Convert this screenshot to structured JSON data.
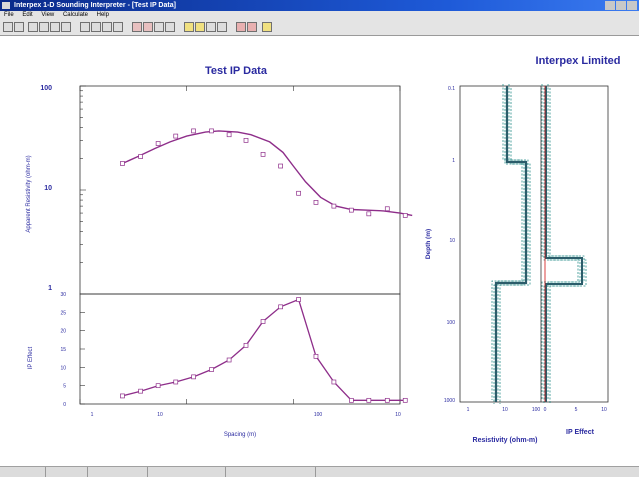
{
  "window": {
    "title": "Interpex 1-D Sounding Interpreter - [Test IP Data]"
  },
  "menu": [
    "File",
    "Edit",
    "View",
    "Calculate",
    "Help"
  ],
  "plot": {
    "title": "Test IP Data",
    "company": "Interpex Limited",
    "res_axis_label": "Apparent Resistivity (ohm-m)",
    "ip_axis_label": "IP Effect",
    "spacing_label": "Spacing (m)",
    "res_ticks": [
      "100",
      "10",
      "1"
    ],
    "ip_ticks": [
      "30",
      "25",
      "20",
      "15",
      "10",
      "5",
      "0"
    ],
    "spacing_ticks": [
      "1",
      "10",
      "100",
      "10"
    ],
    "depth_label": "Depth (m)",
    "depth_ticks": [
      "0.1",
      "1",
      "10",
      "100",
      "1000"
    ],
    "model_res_label": "Resistivity (ohm-m)",
    "model_res_ticks": [
      "1",
      "10",
      "100"
    ],
    "model_ip_label": "IP Effect",
    "model_ip_ticks": [
      "0",
      "5",
      "10"
    ]
  },
  "colors": {
    "title": "#2a2aa0",
    "curve": "#8e2e8a",
    "model": "#2a8f8a",
    "red": "#d01010"
  },
  "chart_data": [
    {
      "type": "scatter",
      "name": "apparent-resistivity",
      "x_scale": "log",
      "y_scale": "log",
      "xlim": [
        1,
        1000
      ],
      "ylim": [
        1,
        100
      ],
      "observed": {
        "x": [
          2.5,
          3.7,
          5.4,
          7.9,
          11.6,
          17.1,
          25,
          36,
          52,
          76,
          112,
          163
        ],
        "y": [
          18,
          21,
          28,
          33,
          37,
          37,
          34,
          30,
          22,
          17,
          9.3,
          7.6
        ]
      },
      "fit": {
        "x": [
          2.5,
          3.5,
          5,
          7,
          10,
          15,
          20,
          30,
          40,
          60,
          80,
          100,
          130,
          180,
          250,
          350,
          500,
          700,
          1000,
          1300
        ],
        "y": [
          18,
          21,
          25,
          29,
          33,
          36,
          37,
          36,
          34,
          29,
          23,
          17,
          12,
          8.5,
          7.0,
          6.5,
          6.4,
          6.3,
          6.0,
          5.7
        ]
      },
      "observed_tail": {
        "x": [
          240,
          350,
          510,
          760,
          1120
        ],
        "y": [
          7.0,
          6.4,
          5.9,
          6.6,
          5.7
        ]
      }
    },
    {
      "type": "line",
      "name": "ip-effect",
      "x_scale": "log",
      "xlim": [
        1,
        1000
      ],
      "ylim": [
        0,
        30
      ],
      "x": [
        2.5,
        3.7,
        5.4,
        7.9,
        11.6,
        17.1,
        25,
        36,
        52,
        76,
        112,
        163,
        240,
        350,
        510,
        760,
        1120
      ],
      "y": [
        2.2,
        3.5,
        5,
        6,
        7.4,
        9.4,
        12,
        16,
        22.5,
        26.5,
        28.5,
        13,
        6,
        1,
        1,
        1,
        1
      ]
    }
  ]
}
